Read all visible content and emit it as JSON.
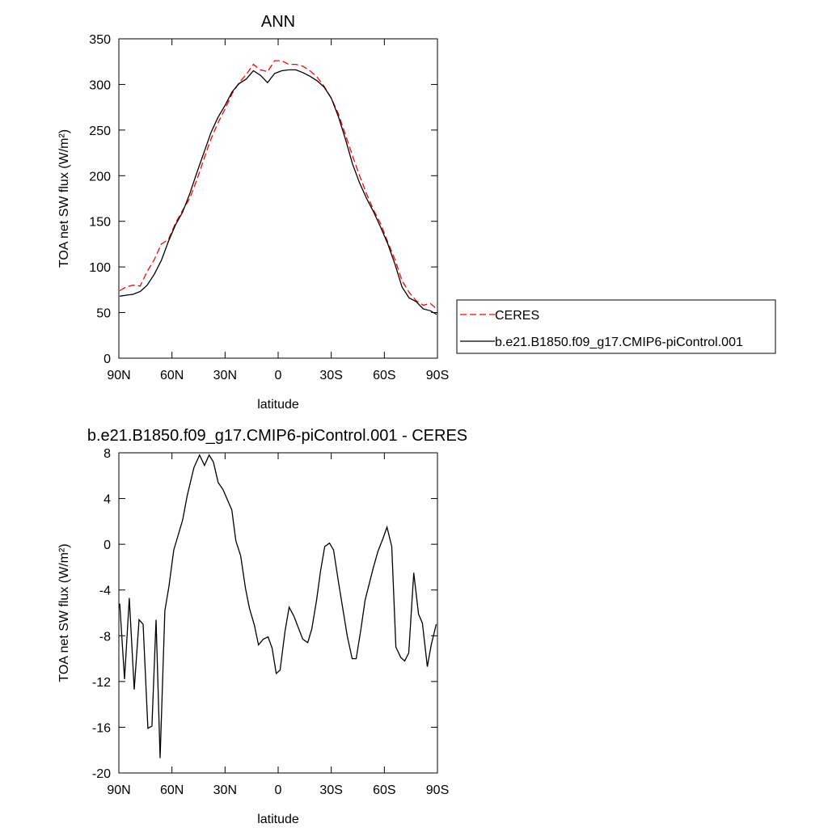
{
  "chart_data": [
    {
      "type": "line",
      "title": "ANN",
      "xlabel": "latitude",
      "ylabel": "TOA net SW flux (W/m²)",
      "xlim": [
        90,
        -90
      ],
      "xticks": [
        {
          "value": 90,
          "label": "90N"
        },
        {
          "value": 60,
          "label": "60N"
        },
        {
          "value": 30,
          "label": "30N"
        },
        0,
        {
          "value": -30,
          "label": "30S"
        },
        {
          "value": -60,
          "label": "60S"
        },
        {
          "value": -90,
          "label": "90S"
        }
      ],
      "ylim": [
        0,
        350
      ],
      "yticks": [
        0,
        50,
        100,
        150,
        200,
        250,
        300,
        350
      ],
      "legend": "right",
      "x": [
        89.5,
        86,
        82,
        78,
        74,
        70,
        66,
        62,
        58,
        54,
        50,
        46,
        42,
        38,
        34,
        30,
        26,
        22,
        18,
        14,
        10,
        6,
        2,
        -2,
        -6,
        -10,
        -14,
        -18,
        -22,
        -26,
        -30,
        -34,
        -38,
        -42,
        -46,
        -50,
        -54,
        -58,
        -62,
        -66,
        -70,
        -74,
        -78,
        -82,
        -86,
        -89.5
      ],
      "series": [
        {
          "name": "CERES",
          "color": "#ff0000",
          "line_style": "dashed",
          "values": [
            74,
            78,
            80,
            79,
            95,
            108,
            125,
            130,
            148,
            162,
            175,
            195,
            218,
            240,
            258,
            273,
            290,
            302,
            311,
            322,
            316,
            314,
            326,
            326,
            322,
            322,
            320,
            315,
            308,
            298,
            285,
            268,
            245,
            222,
            200,
            180,
            162,
            147,
            127,
            108,
            85,
            72,
            63,
            58,
            60,
            54
          ]
        },
        {
          "name": "b.e21.B1850.f09_g17.CMIP6-piControl.001",
          "color": "#000000",
          "line_style": "solid",
          "values": [
            68,
            69,
            70,
            73,
            80,
            92,
            107,
            128,
            146,
            160,
            180,
            203,
            225,
            247,
            264,
            277,
            292,
            301,
            306,
            315,
            310,
            302,
            312,
            315,
            316,
            316,
            313,
            309,
            304,
            297,
            285,
            265,
            240,
            213,
            192,
            175,
            160,
            143,
            125,
            103,
            78,
            66,
            62,
            54,
            52,
            48
          ]
        }
      ]
    },
    {
      "type": "line",
      "title": "b.e21.B1850.f09_g17.CMIP6-piControl.001 - CERES",
      "xlabel": "latitude",
      "ylabel": "TOA net SW flux (W/m²)",
      "xlim": [
        90,
        -90
      ],
      "xticks": [
        {
          "value": 90,
          "label": "90N"
        },
        {
          "value": 60,
          "label": "60N"
        },
        {
          "value": 30,
          "label": "30N"
        },
        0,
        {
          "value": -30,
          "label": "30S"
        },
        {
          "value": -60,
          "label": "60S"
        },
        {
          "value": -90,
          "label": "90S"
        }
      ],
      "ylim": [
        -20,
        8
      ],
      "yticks": [
        -20,
        -16,
        -12,
        -8,
        -4,
        0,
        4,
        8
      ],
      "x": [
        89.5,
        86.8,
        84.1,
        81.3,
        78.6,
        76.3,
        73.6,
        71.3,
        69,
        66.7,
        64,
        61.7,
        59,
        54,
        51.3,
        47.6,
        44.4,
        41.6,
        39,
        36.6,
        33.9,
        31.2,
        26.2,
        23.9,
        21.2,
        18.4,
        16.2,
        13.4,
        11.1,
        8.4,
        5.7,
        3.4,
        1.1,
        -1.1,
        -3.9,
        -6.2,
        -8.9,
        -13.9,
        -16.7,
        -19,
        -21.7,
        -24,
        -26.3,
        -29,
        -31.3,
        -34.1,
        -39,
        -41.8,
        -44.1,
        -46.8,
        -49.1,
        -53.7,
        -56.4,
        -59.2,
        -61.5,
        -64.2,
        -66.5,
        -69.3,
        -71.5,
        -73.8,
        -76.6,
        -79.3,
        -81.5,
        -84.3,
        -86.5,
        -89.3
      ],
      "series": [
        {
          "color": "#000000",
          "line_style": "solid",
          "values": [
            -5.2,
            -11.8,
            -4.7,
            -12.7,
            -6.6,
            -7,
            -16.1,
            -15.9,
            -6.6,
            -18.7,
            -5.8,
            -3.7,
            -0.5,
            2.1,
            4.3,
            6.7,
            7.8,
            6.9,
            7.8,
            7.2,
            5.4,
            4.8,
            3,
            0.3,
            -1,
            -3.9,
            -5.6,
            -7.1,
            -8.8,
            -8.3,
            -8.1,
            -9.1,
            -11.3,
            -11,
            -7.6,
            -5.5,
            -6.3,
            -8.3,
            -8.6,
            -7.4,
            -4.9,
            -2.3,
            -0.2,
            0.1,
            -0.5,
            -3.3,
            -8,
            -10,
            -10,
            -7.4,
            -4.9,
            -2.1,
            -0.6,
            0.5,
            1.5,
            -0.2,
            -9,
            -9.9,
            -10.2,
            -9.5,
            -2.5,
            -6.1,
            -6.9,
            -10.7,
            -8.8,
            -7
          ]
        }
      ]
    }
  ]
}
